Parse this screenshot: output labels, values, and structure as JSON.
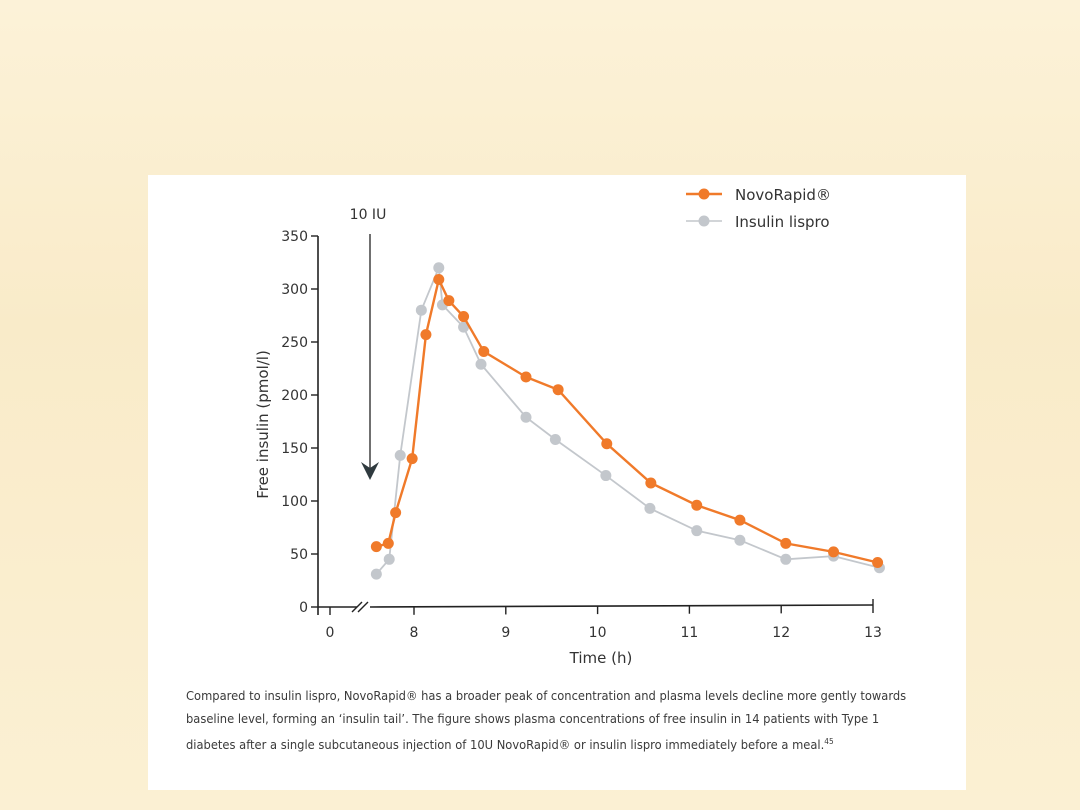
{
  "chart_data": {
    "type": "line",
    "title": "",
    "xlabel": "Time (h)",
    "ylabel": "Free insulin (pmol/l)",
    "ylim": [
      0,
      350
    ],
    "yticks": [
      0,
      50,
      100,
      150,
      200,
      250,
      300,
      350
    ],
    "xticks": [
      0,
      8,
      9,
      10,
      11,
      12,
      13
    ],
    "x_axis_break": true,
    "annotation": "10 IU",
    "annotation_x": 7.5,
    "legend_position": "top-right",
    "series": [
      {
        "name": "NovoRapid®",
        "color": "#f07a2a",
        "x": [
          7.59,
          7.72,
          7.8,
          7.98,
          8.13,
          8.27,
          8.38,
          8.54,
          8.76,
          9.22,
          9.57,
          10.1,
          10.58,
          11.08,
          11.55,
          12.05,
          12.57,
          13.05
        ],
        "y": [
          57,
          60,
          89,
          140,
          257,
          309,
          289,
          274,
          241,
          217,
          205,
          154,
          117,
          96,
          82,
          60,
          52,
          42
        ]
      },
      {
        "name": "Insulin lispro",
        "color": "#c3c7cc",
        "x": [
          7.59,
          7.73,
          7.85,
          8.08,
          8.27,
          8.31,
          8.54,
          8.73,
          9.22,
          9.54,
          10.09,
          10.57,
          11.08,
          11.55,
          12.05,
          12.57,
          13.07
        ],
        "y": [
          31,
          45,
          143,
          280,
          320,
          285,
          264,
          229,
          179,
          158,
          124,
          93,
          72,
          63,
          45,
          48,
          37
        ]
      }
    ]
  },
  "caption": {
    "line1": "Compared to insulin lispro, NovoRapid® has a broader peak of concentration and plasma levels decline more gently towards",
    "line2": "baseline level, forming an ‘insulin tail’. The figure shows plasma concentrations of free insulin in 14 patients with Type 1",
    "line3": "diabetes after a single subcutaneous injection of 10U NovoRapid® or insulin lispro immediately before a meal.",
    "ref": "45"
  }
}
